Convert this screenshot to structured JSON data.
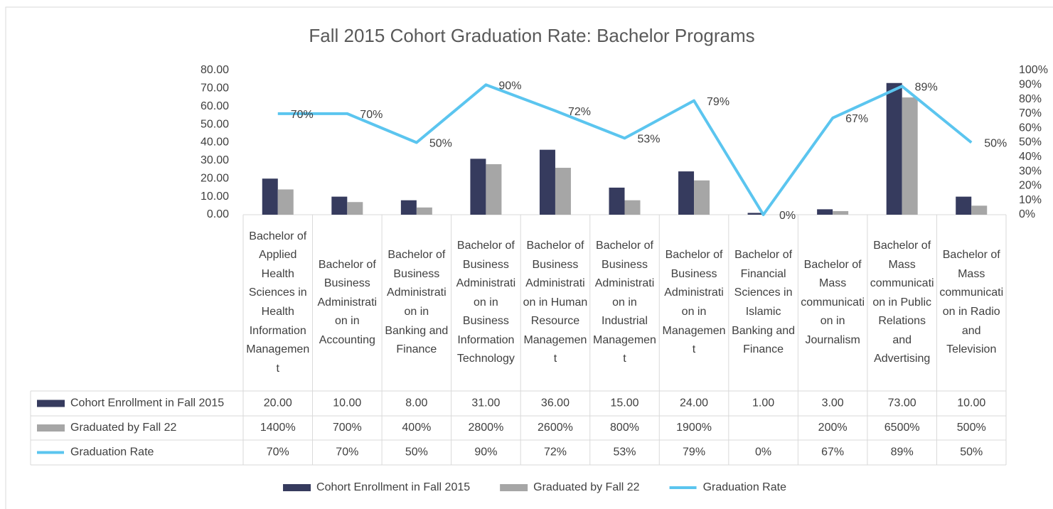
{
  "chart_data": {
    "type": "bar",
    "title": "Fall 2015 Cohort Graduation Rate: Bachelor Programs",
    "categories": [
      "Bachelor of Applied Health Sciences in Health Information Management",
      "Bachelor of Business Administration in Accounting",
      "Bachelor of Business Administration in Banking and Finance",
      "Bachelor of Business Administration in Business Information Technology",
      "Bachelor of Business Administration in Human Resource Management",
      "Bachelor of Business Administration in Industrial Management",
      "Bachelor of Business Administration in Management",
      "Bachelor of Financial Sciences in Islamic Banking and Finance",
      "Bachelor of Mass communication in Journalism",
      "Bachelor of Mass communication in Public Relations and Advertising",
      "Bachelor of Mass communication in Radio and Television"
    ],
    "series": [
      {
        "name": "Cohort Enrollment in Fall 2015",
        "type": "bar",
        "color": "#363b5e",
        "values": [
          20,
          10,
          8,
          31,
          36,
          15,
          24,
          1,
          3,
          73,
          10
        ],
        "value_labels": [
          "20.00",
          "10.00",
          "8.00",
          "31.00",
          "36.00",
          "15.00",
          "24.00",
          "1.00",
          "3.00",
          "73.00",
          "10.00"
        ]
      },
      {
        "name": "Graduated by Fall 22",
        "type": "bar",
        "color": "#a6a6a6",
        "values": [
          14,
          7,
          4,
          28,
          26,
          8,
          19,
          null,
          2,
          65,
          5
        ],
        "value_labels": [
          "1400%",
          "700%",
          "400%",
          "2800%",
          "2600%",
          "800%",
          "1900%",
          null,
          "200%",
          "6500%",
          "500%"
        ]
      },
      {
        "name": "Graduation Rate",
        "type": "line",
        "axis": "y2",
        "color": "#5bc5ef",
        "values": [
          70,
          70,
          50,
          90,
          72,
          53,
          79,
          0,
          67,
          89,
          50
        ],
        "value_labels": [
          "70%",
          "70%",
          "50%",
          "90%",
          "72%",
          "53%",
          "79%",
          "0%",
          "67%",
          "89%",
          "50%"
        ]
      }
    ],
    "ylim": [
      0,
      80
    ],
    "yticks": [
      {
        "value": 0,
        "label": "0.00"
      },
      {
        "value": 10,
        "label": "10.00"
      },
      {
        "value": 20,
        "label": "20.00"
      },
      {
        "value": 30,
        "label": "30.00"
      },
      {
        "value": 40,
        "label": "40.00"
      },
      {
        "value": 50,
        "label": "50.00"
      },
      {
        "value": 60,
        "label": "60.00"
      },
      {
        "value": 70,
        "label": "70.00"
      },
      {
        "value": 80,
        "label": "80.00"
      }
    ],
    "y2lim": [
      0,
      100
    ],
    "y2ticks": [
      {
        "value": 0,
        "label": "0%"
      },
      {
        "value": 10,
        "label": "10%"
      },
      {
        "value": 20,
        "label": "20%"
      },
      {
        "value": 30,
        "label": "30%"
      },
      {
        "value": 40,
        "label": "40%"
      },
      {
        "value": 50,
        "label": "50%"
      },
      {
        "value": 60,
        "label": "60%"
      },
      {
        "value": 70,
        "label": "70%"
      },
      {
        "value": 80,
        "label": "80%"
      },
      {
        "value": 90,
        "label": "90%"
      },
      {
        "value": 100,
        "label": "100%"
      }
    ],
    "legend": "bottom",
    "data_table": true
  }
}
